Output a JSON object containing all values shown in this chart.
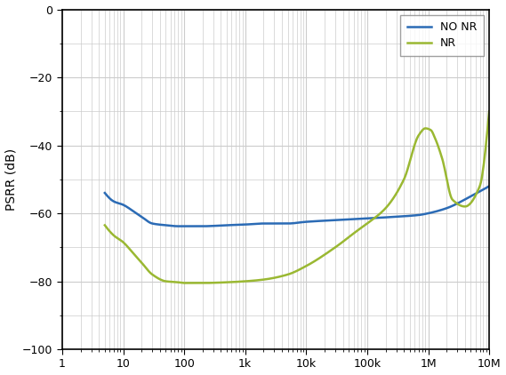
{
  "title": "",
  "ylabel": "PSRR (dB)",
  "xlabel": "",
  "xlim": [
    1,
    10000000.0
  ],
  "ylim": [
    -100,
    0
  ],
  "yticks": [
    0,
    -20,
    -40,
    -60,
    -80,
    -100
  ],
  "xtick_labels": [
    "1",
    "10",
    "100",
    "1k",
    "10k",
    "100k",
    "1M",
    "10M"
  ],
  "xtick_values": [
    1,
    10,
    100,
    1000,
    10000,
    100000,
    1000000,
    10000000
  ],
  "bg_color": "#ffffff",
  "grid_color": "#cccccc",
  "line_no_nr_color": "#2b6bb5",
  "line_nr_color": "#9ab832",
  "legend_labels": [
    "NO NR",
    "NR"
  ],
  "no_nr_x": [
    5,
    7,
    10,
    15,
    20,
    30,
    50,
    80,
    100,
    200,
    500,
    1000,
    2000,
    5000,
    10000,
    30000,
    100000,
    300000,
    700000,
    1000000,
    2000000,
    5000000,
    10000000
  ],
  "no_nr_y": [
    -54.0,
    -56.5,
    -57.5,
    -59.5,
    -61.0,
    -63.0,
    -63.5,
    -63.8,
    -63.8,
    -63.8,
    -63.5,
    -63.3,
    -63.0,
    -63.0,
    -62.5,
    -62.0,
    -61.5,
    -61.0,
    -60.5,
    -60.0,
    -58.5,
    -55.0,
    -52.0
  ],
  "nr_x": [
    5,
    7,
    10,
    15,
    20,
    30,
    50,
    80,
    100,
    200,
    500,
    1000,
    2000,
    5000,
    10000,
    30000,
    70000,
    100000,
    200000,
    400000,
    700000,
    900000,
    1100000,
    1300000,
    1700000,
    2500000,
    4000000,
    7000000,
    10000000
  ],
  "nr_y": [
    -63.5,
    -66.5,
    -68.5,
    -72.0,
    -74.5,
    -78.0,
    -80.0,
    -80.3,
    -80.5,
    -80.5,
    -80.3,
    -80.0,
    -79.5,
    -78.0,
    -75.5,
    -70.0,
    -65.0,
    -63.0,
    -58.5,
    -50.0,
    -37.0,
    -35.0,
    -35.5,
    -38.0,
    -44.0,
    -56.0,
    -58.0,
    -52.0,
    -30.0
  ]
}
